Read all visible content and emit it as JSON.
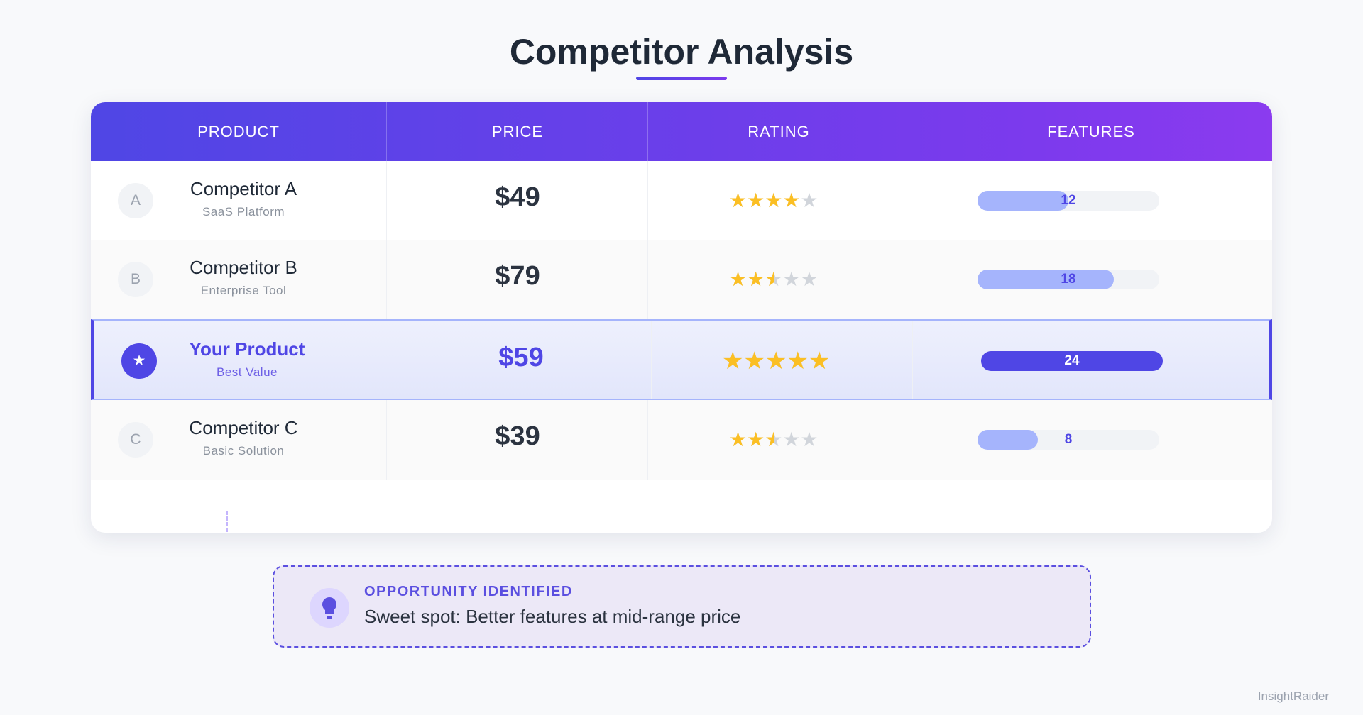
{
  "header": {
    "title": "Competitor Analysis"
  },
  "table": {
    "columns": [
      "PRODUCT",
      "PRICE",
      "RATING",
      "FEATURES"
    ],
    "rows": [
      {
        "badge": "A",
        "name": "Competitor A",
        "subtitle": "SaaS Platform",
        "price": "$49",
        "rating": 4,
        "features": 12,
        "highlight": false
      },
      {
        "badge": "B",
        "name": "Competitor B",
        "subtitle": "Enterprise Tool",
        "price": "$79",
        "rating": 2.5,
        "features": 18,
        "highlight": false
      },
      {
        "name": "Your Product",
        "subtitle": "Best Value",
        "price": "$59",
        "rating": 5,
        "features": 24,
        "highlight": true
      },
      {
        "badge": "C",
        "name": "Competitor C",
        "subtitle": "Basic Solution",
        "price": "$39",
        "rating": 2.5,
        "features": 8,
        "highlight": false
      }
    ]
  },
  "callout": {
    "heading": "OPPORTUNITY IDENTIFIED",
    "text": "Sweet spot: Better features at mid-range price"
  },
  "footer": {
    "brand": "InsightRaider"
  }
}
